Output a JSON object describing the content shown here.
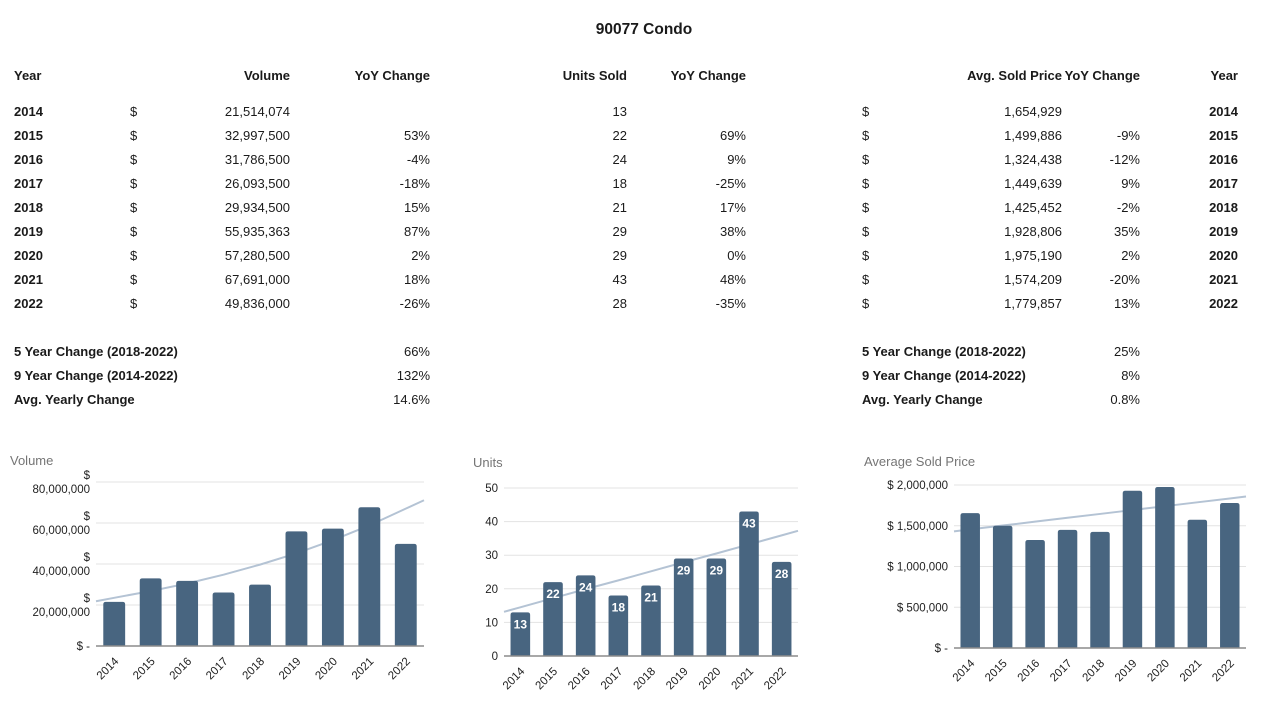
{
  "page_title": "90077 Condo",
  "table": {
    "headers": {
      "year_left": "Year",
      "volume": "Volume",
      "volume_yoy": "YoY Change",
      "units_sold": "Units Sold",
      "units_yoy": "YoY Change",
      "avg_price": "Avg. Sold Price",
      "price_yoy": "YoY Change",
      "year_right": "Year"
    },
    "currency_symbol": "$",
    "rows": [
      {
        "year": "2014",
        "volume": "21,514,074",
        "volume_yoy": "",
        "units": "13",
        "units_yoy": "",
        "price": "1,654,929",
        "price_yoy": ""
      },
      {
        "year": "2015",
        "volume": "32,997,500",
        "volume_yoy": "53%",
        "units": "22",
        "units_yoy": "69%",
        "price": "1,499,886",
        "price_yoy": "-9%"
      },
      {
        "year": "2016",
        "volume": "31,786,500",
        "volume_yoy": "-4%",
        "units": "24",
        "units_yoy": "9%",
        "price": "1,324,438",
        "price_yoy": "-12%"
      },
      {
        "year": "2017",
        "volume": "26,093,500",
        "volume_yoy": "-18%",
        "units": "18",
        "units_yoy": "-25%",
        "price": "1,449,639",
        "price_yoy": "9%"
      },
      {
        "year": "2018",
        "volume": "29,934,500",
        "volume_yoy": "15%",
        "units": "21",
        "units_yoy": "17%",
        "price": "1,425,452",
        "price_yoy": "-2%"
      },
      {
        "year": "2019",
        "volume": "55,935,363",
        "volume_yoy": "87%",
        "units": "29",
        "units_yoy": "38%",
        "price": "1,928,806",
        "price_yoy": "35%"
      },
      {
        "year": "2020",
        "volume": "57,280,500",
        "volume_yoy": "2%",
        "units": "29",
        "units_yoy": "0%",
        "price": "1,975,190",
        "price_yoy": "2%"
      },
      {
        "year": "2021",
        "volume": "67,691,000",
        "volume_yoy": "18%",
        "units": "43",
        "units_yoy": "48%",
        "price": "1,574,209",
        "price_yoy": "-20%"
      },
      {
        "year": "2022",
        "volume": "49,836,000",
        "volume_yoy": "-26%",
        "units": "28",
        "units_yoy": "-35%",
        "price": "1,779,857",
        "price_yoy": "13%"
      }
    ],
    "summaries_left": [
      {
        "label": "5 Year Change (2018-2022)",
        "value": "66%"
      },
      {
        "label": "9 Year Change (2014-2022)",
        "value": "132%"
      },
      {
        "label": "Avg. Yearly Change",
        "value": "14.6%"
      }
    ],
    "summaries_right": [
      {
        "label": "5 Year Change (2018-2022)",
        "value": "25%"
      },
      {
        "label": "9 Year Change (2014-2022)",
        "value": "8%"
      },
      {
        "label": "Avg. Yearly Change",
        "value": "0.8%"
      }
    ]
  },
  "colors": {
    "bar": "#486580",
    "trend": "#b4c3d4",
    "grid": "#e3e3e3",
    "axis": "#8c8c8c",
    "chart_title": "#757575",
    "bar_label": "#ffffff"
  },
  "chart_data": [
    {
      "type": "bar",
      "title": "Volume",
      "categories": [
        "2014",
        "2015",
        "2016",
        "2017",
        "2018",
        "2019",
        "2020",
        "2021",
        "2022"
      ],
      "values": [
        21514074,
        32997500,
        31786500,
        26093500,
        29934500,
        55935363,
        57280500,
        67691000,
        49836000
      ],
      "ylim": [
        0,
        80000000
      ],
      "yticks": [
        {
          "v": 0,
          "lines": [
            "$ -"
          ]
        },
        {
          "v": 20000000,
          "lines": [
            "$",
            "20,000,000"
          ]
        },
        {
          "v": 40000000,
          "lines": [
            "$",
            "40,000,000"
          ]
        },
        {
          "v": 60000000,
          "lines": [
            "$",
            "60,000,000"
          ]
        },
        {
          "v": 80000000,
          "lines": [
            "$",
            "80,000,000"
          ]
        }
      ],
      "trendline": [
        23500000,
        26800000,
        30500000,
        34800000,
        39700000,
        45200000,
        51600000,
        58800000,
        67000000
      ],
      "show_bar_labels": false,
      "grid": true,
      "legend": "none"
    },
    {
      "type": "bar",
      "title": "Units",
      "categories": [
        "2014",
        "2015",
        "2016",
        "2017",
        "2018",
        "2019",
        "2020",
        "2021",
        "2022"
      ],
      "values": [
        13,
        22,
        24,
        18,
        21,
        29,
        29,
        43,
        28
      ],
      "ylim": [
        0,
        50
      ],
      "yticks": [
        {
          "v": 0,
          "lines": [
            "0"
          ]
        },
        {
          "v": 10,
          "lines": [
            "10"
          ]
        },
        {
          "v": 20,
          "lines": [
            "20"
          ]
        },
        {
          "v": 30,
          "lines": [
            "30"
          ]
        },
        {
          "v": 40,
          "lines": [
            "40"
          ]
        },
        {
          "v": 50,
          "lines": [
            "50"
          ]
        }
      ],
      "trendline": [
        14.5,
        17.2,
        19.9,
        22.5,
        25.2,
        27.9,
        30.5,
        33.2,
        35.9
      ],
      "show_bar_labels": true,
      "grid": true,
      "legend": "none"
    },
    {
      "type": "bar",
      "title": "Average Sold Price",
      "categories": [
        "2014",
        "2015",
        "2016",
        "2017",
        "2018",
        "2019",
        "2020",
        "2021",
        "2022"
      ],
      "values": [
        1654929,
        1499886,
        1324438,
        1449639,
        1425452,
        1928806,
        1975190,
        1574209,
        1779857
      ],
      "ylim": [
        0,
        2000000
      ],
      "yticks": [
        {
          "v": 0,
          "lines": [
            "$ -"
          ]
        },
        {
          "v": 500000,
          "lines": [
            "$ 500,000"
          ]
        },
        {
          "v": 1000000,
          "lines": [
            "$ 1,000,000"
          ]
        },
        {
          "v": 1500000,
          "lines": [
            "$ 1,500,000"
          ]
        },
        {
          "v": 2000000,
          "lines": [
            "$ 2,000,000"
          ]
        }
      ],
      "trendline": [
        1455000,
        1502500,
        1550000,
        1597500,
        1645000,
        1692500,
        1740000,
        1787500,
        1835000
      ],
      "show_bar_labels": false,
      "grid": true,
      "legend": "none"
    }
  ]
}
